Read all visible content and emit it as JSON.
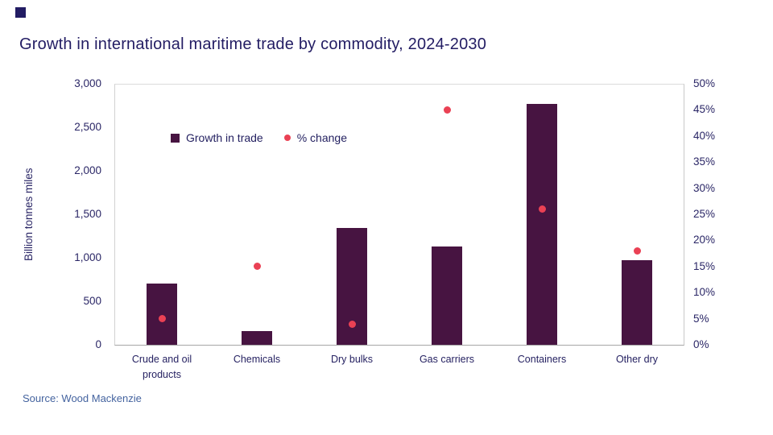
{
  "brand": {
    "mark_color": "#221c63"
  },
  "source": "Source: Wood Mackenzie",
  "chart_data": {
    "type": "bar",
    "title": "Growth in international maritime trade by commodity, 2024-2030",
    "categories": [
      "Crude and oil products",
      "Chemicals",
      "Dry bulks",
      "Gas carriers",
      "Containers",
      "Other dry"
    ],
    "series": [
      {
        "name": "Growth in trade",
        "type": "bar",
        "axis": "left",
        "color": "#471441",
        "values": [
          700,
          160,
          1340,
          1130,
          2770,
          970
        ]
      },
      {
        "name": "% change",
        "type": "scatter",
        "axis": "right",
        "color": "#ea4154",
        "values": [
          5,
          15,
          4,
          45,
          26,
          18
        ]
      }
    ],
    "ylabel_left": "Billion tonnes miles",
    "left_axis": {
      "min": 0,
      "max": 3000,
      "step": 500,
      "tick_labels": [
        "0",
        "500",
        "1,000",
        "1,500",
        "2,000",
        "2,500",
        "3,000"
      ]
    },
    "right_axis": {
      "min": 0,
      "max": 50,
      "step": 5,
      "tick_labels": [
        "0%",
        "5%",
        "10%",
        "15%",
        "20%",
        "25%",
        "30%",
        "35%",
        "40%",
        "45%",
        "50%"
      ]
    },
    "grid": false,
    "legend_position": "inside-top-left"
  }
}
